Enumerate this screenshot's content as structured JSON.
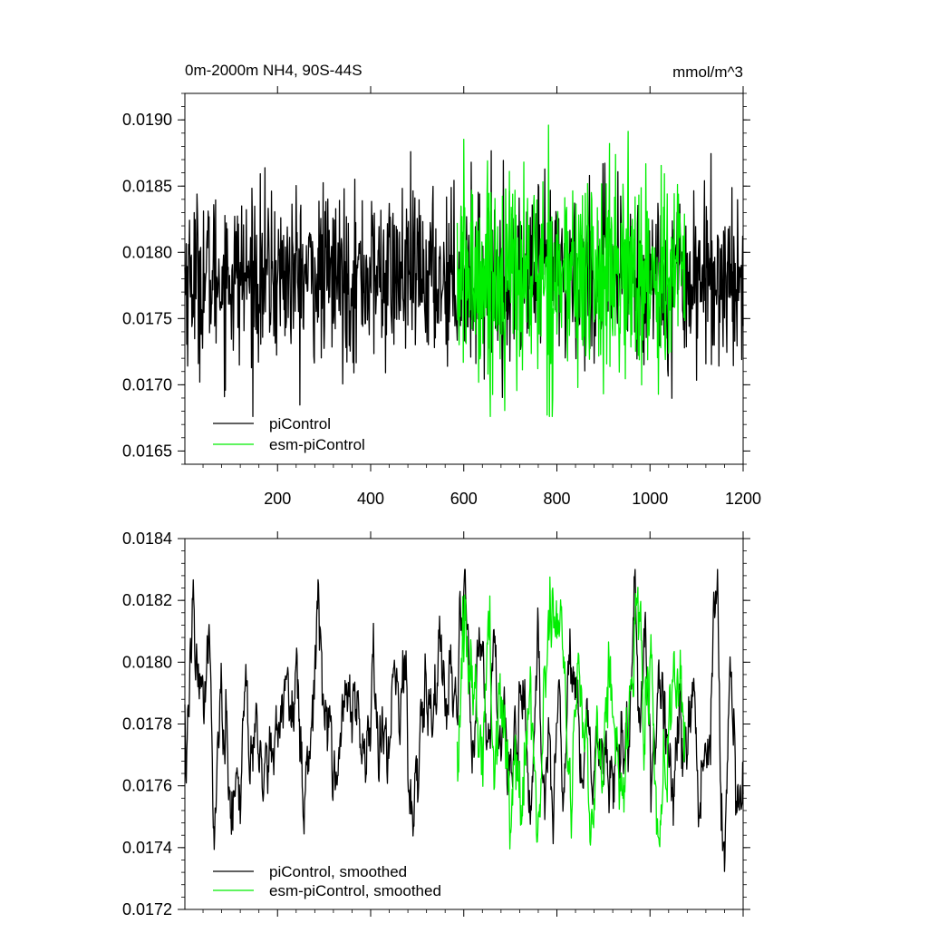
{
  "chart_data": [
    {
      "type": "line",
      "title": "0m-2000m NH4, 90S-44S",
      "units": "mmol/m^3",
      "xlim": [
        1,
        1200
      ],
      "ylim": [
        0.0164,
        0.0192
      ],
      "xticks": [
        200,
        400,
        600,
        800,
        1000,
        1200
      ],
      "xtick_labels": [
        "200",
        "400",
        "600",
        "800",
        "1000",
        "1200"
      ],
      "yticks": [
        0.0165,
        0.017,
        0.0175,
        0.018,
        0.0185,
        0.019
      ],
      "ytick_labels": [
        "0.0165",
        "0.0170",
        "0.0175",
        "0.0180",
        "0.0185",
        "0.0190"
      ],
      "legend_position": "bottom-left",
      "series": [
        {
          "name": "piControl",
          "color": "#000000",
          "x_start": 1,
          "x_end": 1200,
          "mean": 0.01781,
          "sd": 0.00032,
          "min": 0.01676,
          "max": 0.01897,
          "smoothing": 0
        },
        {
          "name": "esm-piControl",
          "color": "#00ee00",
          "x_start": 586,
          "x_end": 1075,
          "mean": 0.01782,
          "sd": 0.0004,
          "min": 0.01676,
          "max": 0.01907,
          "smoothing": 0
        }
      ]
    },
    {
      "type": "line",
      "xlim": [
        1,
        1200
      ],
      "ylim": [
        0.0172,
        0.0184
      ],
      "xticks": [
        200,
        400,
        600,
        800,
        1000,
        1200
      ],
      "yticks": [
        0.0172,
        0.0174,
        0.0176,
        0.0178,
        0.018,
        0.0182,
        0.0184
      ],
      "ytick_labels": [
        "0.0172",
        "0.0174",
        "0.0176",
        "0.0178",
        "0.0180",
        "0.0182",
        "0.0184"
      ],
      "legend_position": "bottom-left",
      "series": [
        {
          "name": "piControl, smoothed",
          "color": "#000000",
          "x_start": 1,
          "x_end": 1200,
          "mean": 0.0178,
          "sd": 0.00017,
          "min": 0.0173,
          "max": 0.0183,
          "smoothing": 1
        },
        {
          "name": "esm-piControl, smoothed",
          "color": "#00ee00",
          "x_start": 586,
          "x_end": 1075,
          "mean": 0.01781,
          "sd": 0.0002,
          "min": 0.01736,
          "max": 0.01839,
          "smoothing": 1
        }
      ]
    }
  ]
}
